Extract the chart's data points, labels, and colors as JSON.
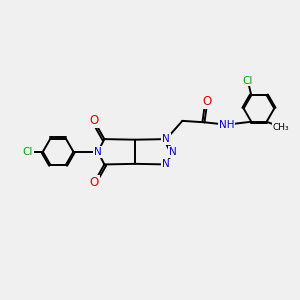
{
  "bg_color": "#f0f0f0",
  "bond_color": "#000000",
  "bond_width": 1.4,
  "atom_colors": {
    "C": "#000000",
    "N": "#0000cc",
    "O": "#dd0000",
    "Cl": "#00aa00",
    "H": "#4a8a8a"
  },
  "font_size": 7.5,
  "figsize": [
    3.0,
    3.0
  ],
  "dpi": 100
}
